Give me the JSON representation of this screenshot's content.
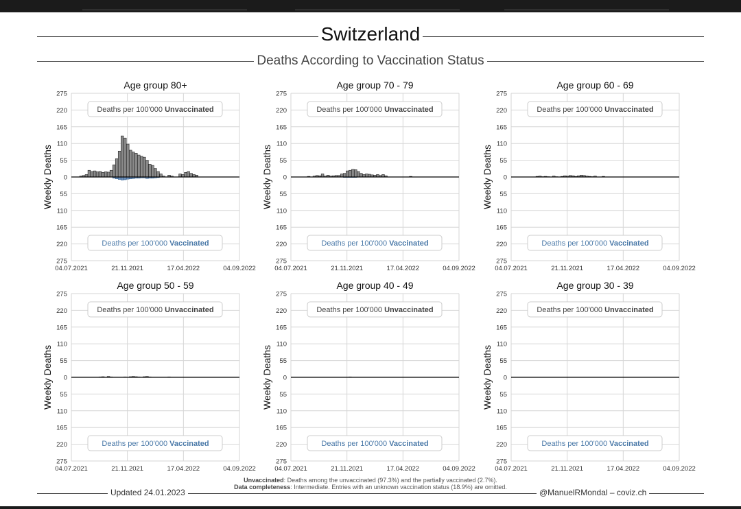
{
  "header": {
    "title": "Switzerland",
    "subtitle": "Deaths According to Vaccination Status"
  },
  "legend_labels": {
    "unvacc_prefix": "Deaths per 100'000 ",
    "unvacc_bold": "Unvaccinated",
    "vacc_prefix": "Deaths per 100'000 ",
    "vacc_bold": "Vaccinated"
  },
  "notes": {
    "line1_bold": "Unvaccinated",
    "line1_rest": ": Deaths among the unvaccinated (97.3%) and the partially vaccinated (2.7%).",
    "line2_bold": "Data completeness",
    "line2_rest": ": Intermediate. Entries with an unknown vaccination status (18.9%) are omitted."
  },
  "footer": {
    "updated": "Updated 24.01.2023",
    "credit": "@ManuelRMondal – coviz.ch"
  },
  "colors": {
    "unvaccinated_bar": "#8a8a8a",
    "vaccinated_bar": "#6f8fb8",
    "vaccinated_label": "#4a79a8",
    "grid": "#d6d6d6"
  },
  "chart_data": [
    {
      "type": "bar",
      "title": "Age group 80+",
      "ylabel": "Weekly Deaths",
      "ylim": [
        -275,
        275
      ],
      "y_ticks": [
        "275",
        "220",
        "165",
        "110",
        "55",
        "0",
        "55",
        "110",
        "165",
        "220",
        "275"
      ],
      "x_ticks": [
        "04.07.2021",
        "21.11.2021",
        "17.04.2022",
        "04.09.2022"
      ],
      "x_start": "2021-07-04",
      "series": [
        {
          "values": [
            3,
            5,
            8,
            22,
            18,
            20,
            17,
            18,
            15,
            17,
            16,
            22,
            40,
            60,
            85,
            135,
            128,
            108,
            88,
            82,
            78,
            72,
            68,
            65,
            55,
            42,
            38,
            28,
            18,
            10,
            3,
            0,
            6,
            3,
            0,
            0,
            10,
            8,
            15,
            18,
            12,
            8,
            6
          ]
        },
        {
          "values": [
            0,
            0,
            0,
            0,
            0,
            0,
            0,
            0,
            0,
            0,
            0,
            0,
            -4,
            -6,
            -8,
            -10,
            -9,
            -7,
            -6,
            -5,
            -4,
            -4,
            -3,
            -3,
            -5,
            -4,
            -4,
            -3,
            -2,
            0,
            0,
            0,
            0,
            0,
            0,
            0,
            0,
            0,
            0,
            0,
            0,
            0,
            0
          ]
        }
      ]
    },
    {
      "type": "bar",
      "title": "Age group 70 - 79",
      "ylabel": "Weekly Deaths",
      "ylim": [
        -275,
        275
      ],
      "y_ticks": [
        "275",
        "220",
        "165",
        "110",
        "55",
        "0",
        "55",
        "110",
        "165",
        "220",
        "275"
      ],
      "x_ticks": [
        "04.07.2021",
        "21.11.2021",
        "17.04.2022",
        "04.09.2022"
      ],
      "x_start": "2021-07-04",
      "series": [
        {
          "values": [
            0,
            0,
            0,
            2,
            0,
            3,
            5,
            4,
            10,
            3,
            6,
            3,
            4,
            5,
            5,
            10,
            12,
            20,
            22,
            25,
            24,
            18,
            12,
            8,
            10,
            9,
            7,
            6,
            8,
            5,
            8,
            4,
            0,
            0,
            0,
            0,
            0,
            0,
            0,
            0,
            2,
            0,
            0
          ]
        },
        {
          "values": [
            0,
            0,
            0,
            0,
            0,
            0,
            0,
            0,
            0,
            0,
            0,
            0,
            0,
            0,
            0,
            0,
            -1,
            -1,
            -1,
            -1,
            -1,
            0,
            0,
            0,
            0,
            0,
            0,
            0,
            0,
            0,
            0,
            0,
            0,
            0,
            0,
            0,
            0,
            0,
            0,
            0,
            0,
            0,
            0
          ]
        }
      ]
    },
    {
      "type": "bar",
      "title": "Age group 60 - 69",
      "ylabel": "Weekly Deaths",
      "ylim": [
        -275,
        275
      ],
      "y_ticks": [
        "275",
        "220",
        "165",
        "110",
        "55",
        "0",
        "55",
        "110",
        "165",
        "220",
        "275"
      ],
      "x_ticks": [
        "04.07.2021",
        "21.11.2021",
        "17.04.2022",
        "04.09.2022"
      ],
      "x_start": "2021-07-04",
      "series": [
        {
          "values": [
            0,
            0,
            0,
            0,
            0,
            0,
            2,
            3,
            1,
            2,
            1,
            0,
            3,
            1,
            0,
            2,
            4,
            3,
            5,
            4,
            2,
            4,
            6,
            5,
            3,
            2,
            1,
            3,
            0,
            0,
            2,
            0,
            0,
            0,
            0,
            0,
            0,
            0,
            0,
            0,
            0,
            0,
            0
          ]
        },
        {
          "values": [
            0,
            0,
            0,
            0,
            0,
            0,
            0,
            0,
            0,
            0,
            0,
            0,
            0,
            0,
            0,
            0,
            0,
            0,
            0,
            0,
            0,
            0,
            0,
            0,
            0,
            0,
            0,
            0,
            0,
            0,
            0,
            0,
            0,
            0,
            0,
            0,
            0,
            0,
            0,
            0,
            0,
            0,
            0
          ]
        }
      ]
    },
    {
      "type": "bar",
      "title": "Age group 50 - 59",
      "ylabel": "Weekly Deaths",
      "ylim": [
        -275,
        275
      ],
      "y_ticks": [
        "275",
        "220",
        "165",
        "110",
        "55",
        "0",
        "55",
        "110",
        "165",
        "220",
        "275"
      ],
      "x_ticks": [
        "04.07.2021",
        "21.11.2021",
        "17.04.2022",
        "04.09.2022"
      ],
      "x_start": "2021-07-04",
      "series": [
        {
          "values": [
            0,
            0,
            0,
            0,
            0,
            0,
            0,
            1,
            2,
            0,
            3,
            1,
            0,
            0,
            0,
            0,
            1,
            0,
            2,
            3,
            2,
            1,
            0,
            2,
            3,
            1,
            0,
            0,
            0,
            0,
            0,
            0,
            1,
            0,
            0,
            0,
            0,
            0,
            0,
            0,
            0,
            0,
            0
          ]
        },
        {
          "values": [
            0,
            0,
            0,
            0,
            0,
            0,
            0,
            0,
            0,
            0,
            0,
            0,
            0,
            0,
            0,
            0,
            0,
            0,
            0,
            0,
            0,
            0,
            0,
            0,
            0,
            0,
            0,
            0,
            0,
            0,
            0,
            0,
            0,
            0,
            0,
            0,
            0,
            0,
            0,
            0,
            0,
            0,
            0
          ]
        }
      ]
    },
    {
      "type": "bar",
      "title": "Age group 40 - 49",
      "ylabel": "Weekly Deaths",
      "ylim": [
        -275,
        275
      ],
      "y_ticks": [
        "275",
        "220",
        "165",
        "110",
        "55",
        "0",
        "55",
        "110",
        "165",
        "220",
        "275"
      ],
      "x_ticks": [
        "04.07.2021",
        "21.11.2021",
        "17.04.2022",
        "04.09.2022"
      ],
      "x_start": "2021-07-04",
      "series": [
        {
          "values": [
            0,
            0,
            0,
            0,
            0,
            0,
            0,
            0,
            0,
            0,
            0,
            0,
            0,
            0,
            0,
            0,
            0,
            0,
            1,
            0,
            0,
            0,
            0,
            0,
            0,
            0,
            0,
            0,
            0,
            0,
            0,
            0,
            0,
            0,
            0,
            0,
            0,
            0,
            0,
            0,
            0,
            0,
            0
          ]
        },
        {
          "values": [
            0,
            0,
            0,
            0,
            0,
            0,
            0,
            0,
            0,
            0,
            0,
            0,
            0,
            0,
            0,
            0,
            0,
            0,
            0,
            0,
            0,
            0,
            0,
            0,
            0,
            0,
            0,
            0,
            0,
            0,
            0,
            0,
            0,
            0,
            0,
            0,
            0,
            0,
            0,
            0,
            0,
            0,
            0
          ]
        }
      ]
    },
    {
      "type": "bar",
      "title": "Age group 30 - 39",
      "ylabel": "Weekly Deaths",
      "ylim": [
        -275,
        275
      ],
      "y_ticks": [
        "275",
        "220",
        "165",
        "110",
        "55",
        "0",
        "55",
        "110",
        "165",
        "220",
        "275"
      ],
      "x_ticks": [
        "04.07.2021",
        "21.11.2021",
        "17.04.2022",
        "04.09.2022"
      ],
      "x_start": "2021-07-04",
      "series": [
        {
          "values": [
            0,
            0,
            0,
            0,
            0,
            0,
            0,
            0,
            0,
            0,
            0,
            0,
            0,
            0,
            0,
            0,
            0,
            0,
            0,
            0,
            0,
            0,
            0,
            0,
            0,
            0,
            0,
            0,
            0,
            0,
            0,
            0,
            0,
            0,
            0,
            0,
            0,
            0,
            0,
            0,
            0,
            0,
            0
          ]
        },
        {
          "values": [
            0,
            0,
            0,
            0,
            0,
            0,
            0,
            0,
            0,
            0,
            0,
            0,
            0,
            0,
            0,
            0,
            0,
            0,
            0,
            0,
            0,
            0,
            0,
            0,
            0,
            0,
            0,
            0,
            0,
            0,
            0,
            0,
            0,
            0,
            0,
            0,
            0,
            0,
            0,
            0,
            0,
            0,
            0
          ]
        }
      ]
    }
  ]
}
